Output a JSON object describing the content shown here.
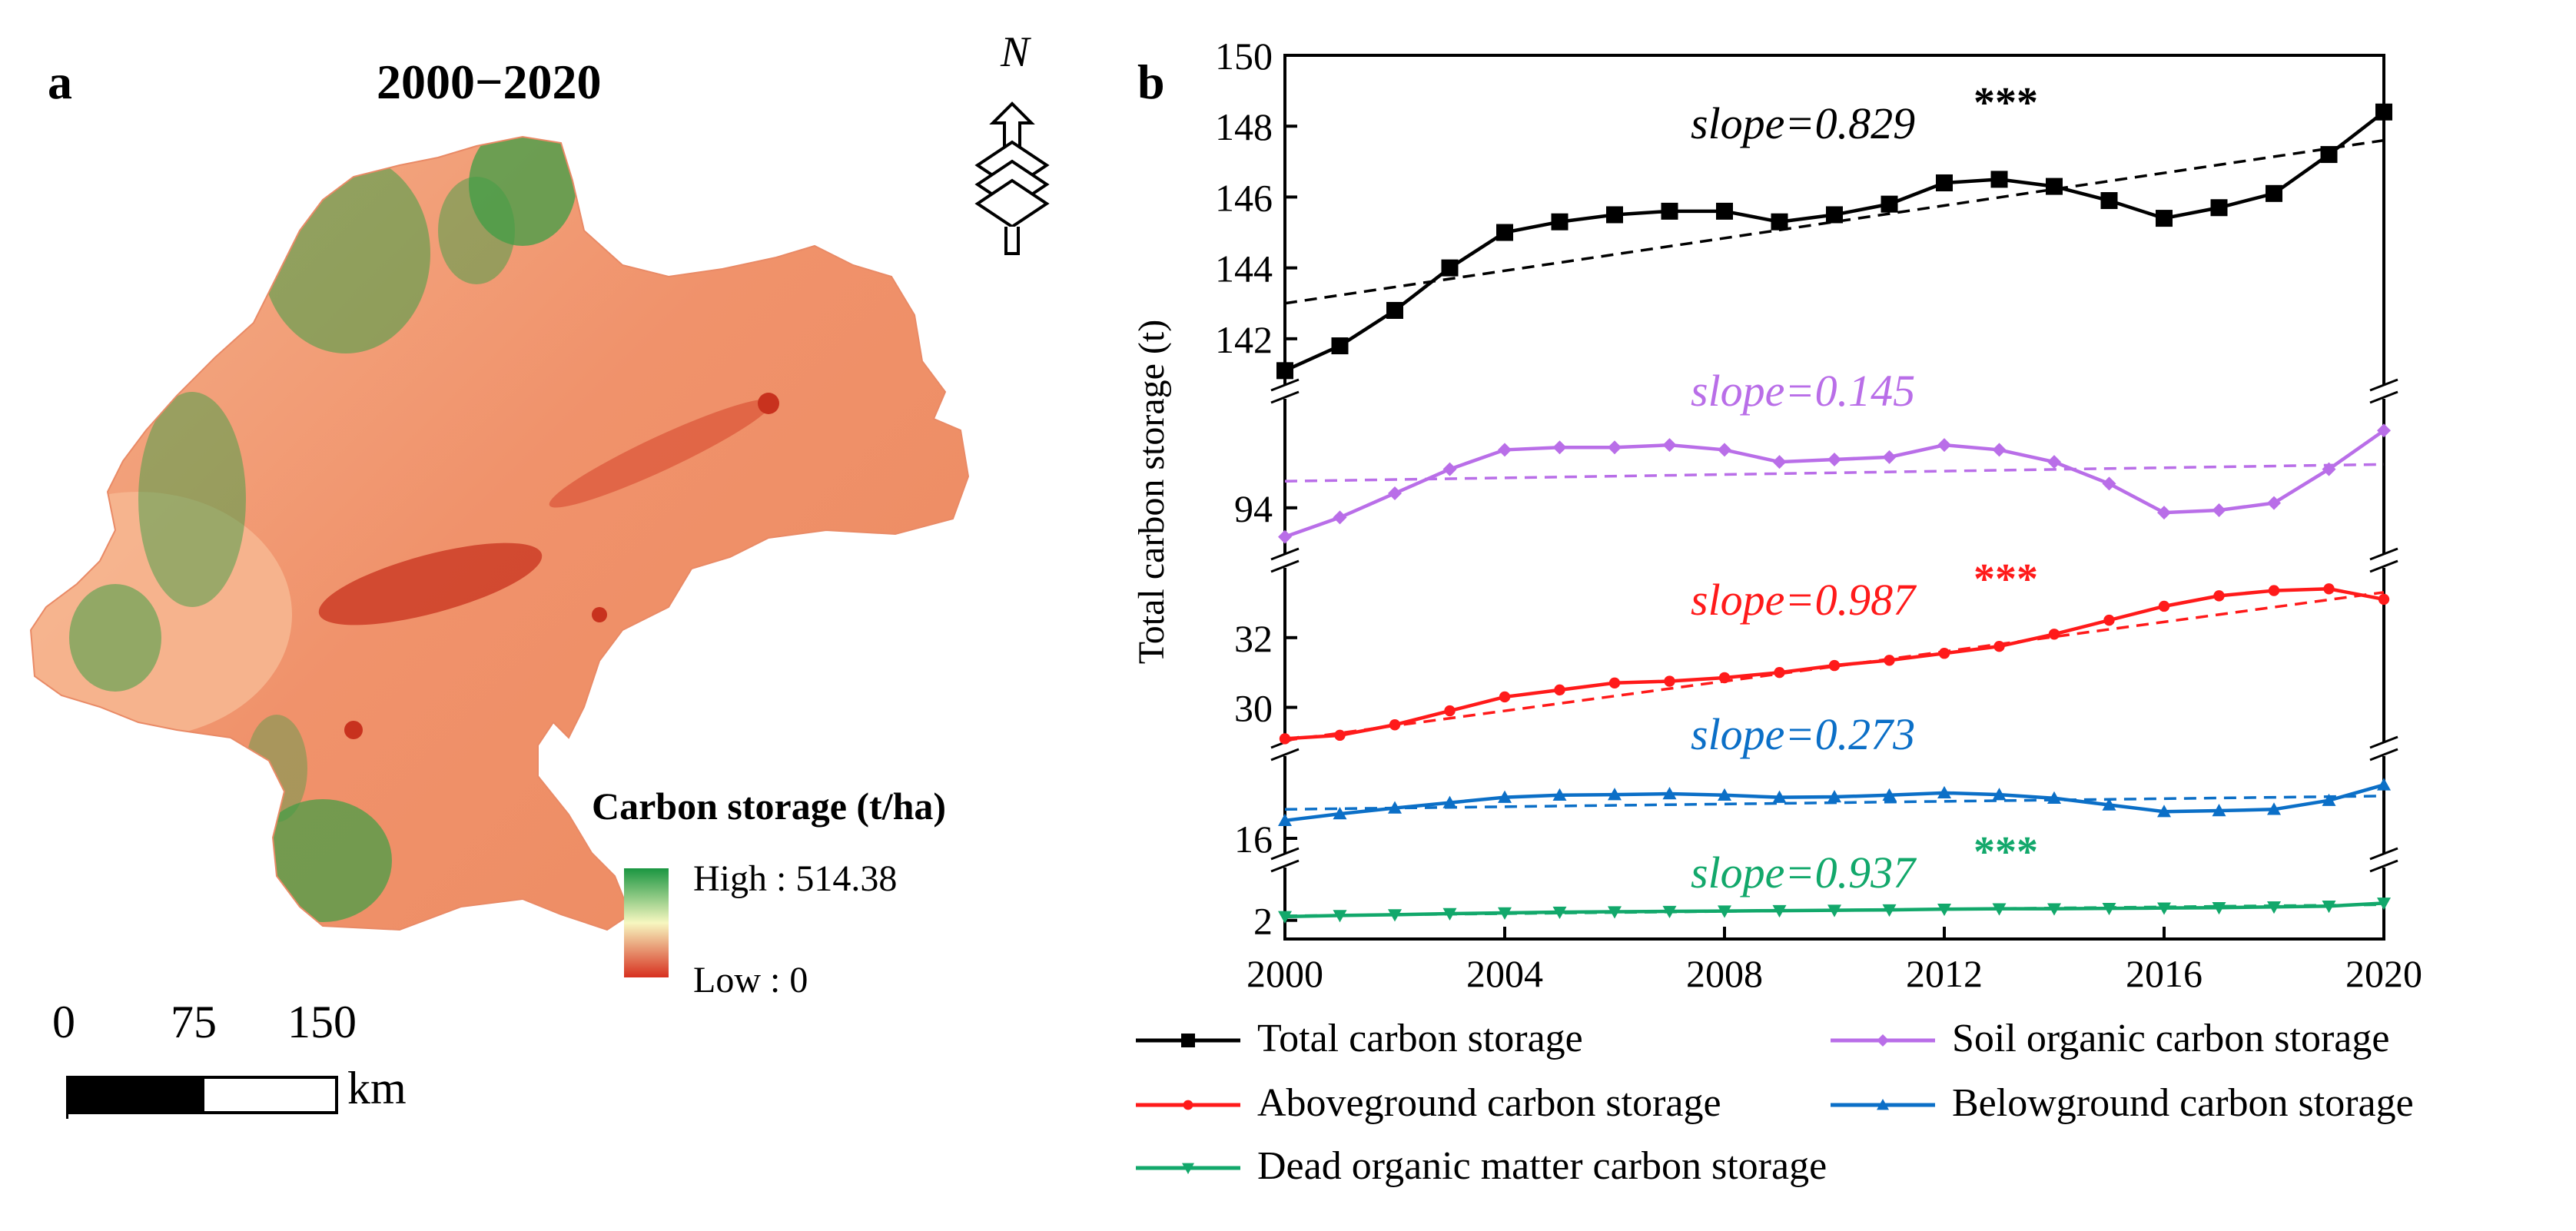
{
  "panel_a": {
    "letter": "a",
    "title": "2000−2020",
    "legend": {
      "title": "Carbon storage (t/ha)",
      "high": "High : 514.38",
      "low": "Low : 0",
      "colors": [
        "#1a9641",
        "#f7f7c0",
        "#d7301f"
      ]
    },
    "scale": {
      "labels": [
        "0",
        "75",
        "150"
      ],
      "unit": "km"
    },
    "north_label": "N",
    "colors": {
      "map_base": "#f0926b",
      "map_light": "#f6b690",
      "map_green": "#3f9e45",
      "map_dark": "#c8321e"
    }
  },
  "panel_b": {
    "letter": "b",
    "ylabel": "Total carbon storage (t)",
    "xlabel_ticks": [
      "2000",
      "2004",
      "2008",
      "2012",
      "2016",
      "2020"
    ]
  },
  "chart_data": {
    "type": "line",
    "title": "",
    "xlabel": "",
    "ylabel": "Total carbon storage (t)",
    "x": [
      2000,
      2001,
      2002,
      2003,
      2004,
      2005,
      2006,
      2007,
      2008,
      2009,
      2010,
      2011,
      2012,
      2013,
      2014,
      2015,
      2016,
      2017,
      2018,
      2019,
      2020
    ],
    "xlim": [
      2000,
      2020
    ],
    "x_ticks": [
      2000,
      2004,
      2008,
      2012,
      2016,
      2020
    ],
    "broken_axis": true,
    "segments": [
      {
        "name": "Total carbon storage",
        "ylim": [
          140.5,
          150
        ],
        "ticks": [
          142,
          144,
          146,
          148,
          150
        ]
      },
      {
        "name": "Soil organic carbon storage",
        "ylim": [
          92.9,
          96.4
        ],
        "ticks": [
          94
        ]
      },
      {
        "name": "Aboveground carbon storage",
        "ylim": [
          28.8,
          34.2
        ],
        "ticks": [
          30,
          32
        ]
      },
      {
        "name": "Belowground carbon storage",
        "ylim": [
          15.5,
          18.0
        ],
        "ticks": [
          16
        ]
      },
      {
        "name": "Dead organic matter carbon storage",
        "ylim": [
          1.5,
          3.6
        ],
        "ticks": [
          2
        ]
      }
    ],
    "series": [
      {
        "name": "Total carbon storage",
        "color": "#000000",
        "marker": "square",
        "values": [
          141.1,
          141.8,
          142.8,
          144.0,
          145.0,
          145.3,
          145.5,
          145.6,
          145.6,
          145.3,
          145.5,
          145.8,
          146.4,
          146.5,
          146.3,
          145.9,
          145.4,
          145.7,
          146.1,
          147.2,
          148.4
        ],
        "trend": [
          143.0,
          147.6
        ],
        "slope_label": "slope=0.829",
        "significance": "***"
      },
      {
        "name": "Soil organic carbon storage",
        "color": "#b96ee8",
        "marker": "diamond",
        "values": [
          93.4,
          93.8,
          94.3,
          94.8,
          95.2,
          95.25,
          95.25,
          95.3,
          95.2,
          94.95,
          95.0,
          95.05,
          95.3,
          95.2,
          94.95,
          94.5,
          93.9,
          93.95,
          94.1,
          94.8,
          95.6
        ],
        "trend": [
          94.55,
          94.9
        ],
        "slope_label": "slope=0.145",
        "significance": ""
      },
      {
        "name": "Aboveground carbon storage",
        "color": "#ff1a1a",
        "marker": "circle",
        "values": [
          29.1,
          29.2,
          29.5,
          29.9,
          30.3,
          30.5,
          30.7,
          30.75,
          30.85,
          31.0,
          31.2,
          31.35,
          31.55,
          31.75,
          32.1,
          32.5,
          32.9,
          33.2,
          33.35,
          33.4,
          33.1
        ],
        "trend": [
          29.05,
          33.3
        ],
        "slope_label": "slope=0.987",
        "significance": "***"
      },
      {
        "name": "Belowground carbon storage",
        "color": "#0b6fc7",
        "marker": "triangle-up",
        "values": [
          16.4,
          16.55,
          16.68,
          16.8,
          16.92,
          16.97,
          16.98,
          17.0,
          16.97,
          16.92,
          16.93,
          16.97,
          17.02,
          16.98,
          16.9,
          16.75,
          16.6,
          16.62,
          16.65,
          16.85,
          17.2
        ],
        "trend": [
          16.65,
          16.95
        ],
        "slope_label": "slope=0.273",
        "significance": ""
      },
      {
        "name": "Dead organic matter carbon storage",
        "color": "#12a86b",
        "marker": "triangle-down",
        "values": [
          2.1,
          2.13,
          2.15,
          2.18,
          2.2,
          2.22,
          2.23,
          2.24,
          2.25,
          2.26,
          2.27,
          2.28,
          2.3,
          2.31,
          2.31,
          2.32,
          2.33,
          2.34,
          2.36,
          2.38,
          2.46
        ],
        "trend": [
          2.12,
          2.42
        ],
        "slope_label": "slope=0.937",
        "significance": "***"
      }
    ],
    "legend": {
      "placement": "bottom",
      "entries": [
        "Total carbon storage",
        "Soil organic carbon storage",
        "Aboveground carbon storage",
        "Belowground carbon storage",
        "Dead organic matter carbon storage"
      ]
    }
  }
}
